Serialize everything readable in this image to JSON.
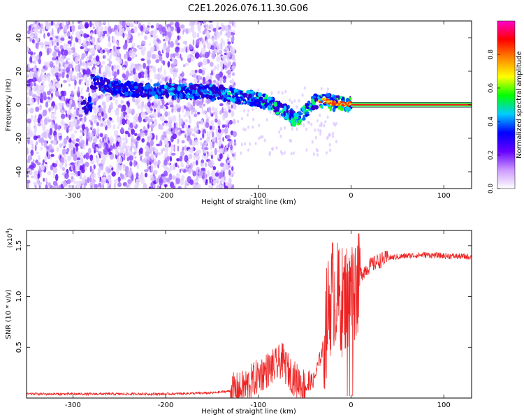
{
  "title": "C2E1.2026.076.11.30.G06",
  "chart_data": [
    {
      "type": "heatmap",
      "title": "C2E1.2026.076.11.30.G06",
      "xlabel": "Height of straight line (km)",
      "ylabel": "Frequency (Hz)",
      "xlim": [
        -350,
        130
      ],
      "ylim": [
        -50,
        50
      ],
      "xticks": [
        -300,
        -200,
        -100,
        0,
        100
      ],
      "yticks": [
        -40,
        -20,
        0,
        20,
        40
      ],
      "colorbar": {
        "label": "Normalized spectral amplitude",
        "range": [
          0,
          1
        ],
        "ticks": [
          "0.0",
          "0.2",
          "0.4",
          "0.6",
          "0.8"
        ],
        "colors": [
          "#ffffff",
          "#cc99ff",
          "#6600ff",
          "#0000ff",
          "#00ccff",
          "#00ff00",
          "#ffff00",
          "#ff8800",
          "#ff0000",
          "#ff00cc"
        ]
      },
      "signal_track": [
        {
          "x": -280,
          "y": 14
        },
        {
          "x": -260,
          "y": 10
        },
        {
          "x": -230,
          "y": 9
        },
        {
          "x": -200,
          "y": 8
        },
        {
          "x": -170,
          "y": 8
        },
        {
          "x": -140,
          "y": 7
        },
        {
          "x": -120,
          "y": 5
        },
        {
          "x": -100,
          "y": 3
        },
        {
          "x": -85,
          "y": 0
        },
        {
          "x": -70,
          "y": -4
        },
        {
          "x": -60,
          "y": -9
        },
        {
          "x": -50,
          "y": -5
        },
        {
          "x": -40,
          "y": 1
        },
        {
          "x": -30,
          "y": 3
        },
        {
          "x": -20,
          "y": 1
        },
        {
          "x": -10,
          "y": 1
        },
        {
          "x": 0,
          "y": 0
        },
        {
          "x": 130,
          "y": 0
        }
      ]
    },
    {
      "type": "line",
      "xlabel": "Height of straight line (km)",
      "ylabel": "SNR (10 * v/v)",
      "yscale_label": "(x10",
      "yscale_exp": "4",
      "xlim": [
        -350,
        130
      ],
      "ylim": [
        0,
        1.65
      ],
      "xticks": [
        -300,
        -200,
        -100,
        0,
        100
      ],
      "yticks": [
        0.5,
        1.0,
        1.5
      ],
      "ytick_labels": [
        "0.5",
        "1.0",
        "1.5"
      ],
      "color": "#ee2222",
      "x": [
        -350,
        -300,
        -250,
        -200,
        -150,
        -120,
        -110,
        -100,
        -90,
        -80,
        -75,
        -70,
        -60,
        -50,
        -40,
        -30,
        -25,
        -20,
        -15,
        -10,
        -5,
        0,
        5,
        10,
        20,
        30,
        40,
        60,
        80,
        100,
        130
      ],
      "y": [
        0.04,
        0.04,
        0.04,
        0.04,
        0.05,
        0.08,
        0.14,
        0.22,
        0.28,
        0.32,
        0.38,
        0.3,
        0.18,
        0.12,
        0.18,
        0.5,
        0.85,
        1.05,
        1.0,
        0.95,
        1.0,
        1.02,
        1.12,
        1.22,
        1.3,
        1.35,
        1.38,
        1.4,
        1.41,
        1.4,
        1.39
      ]
    }
  ]
}
